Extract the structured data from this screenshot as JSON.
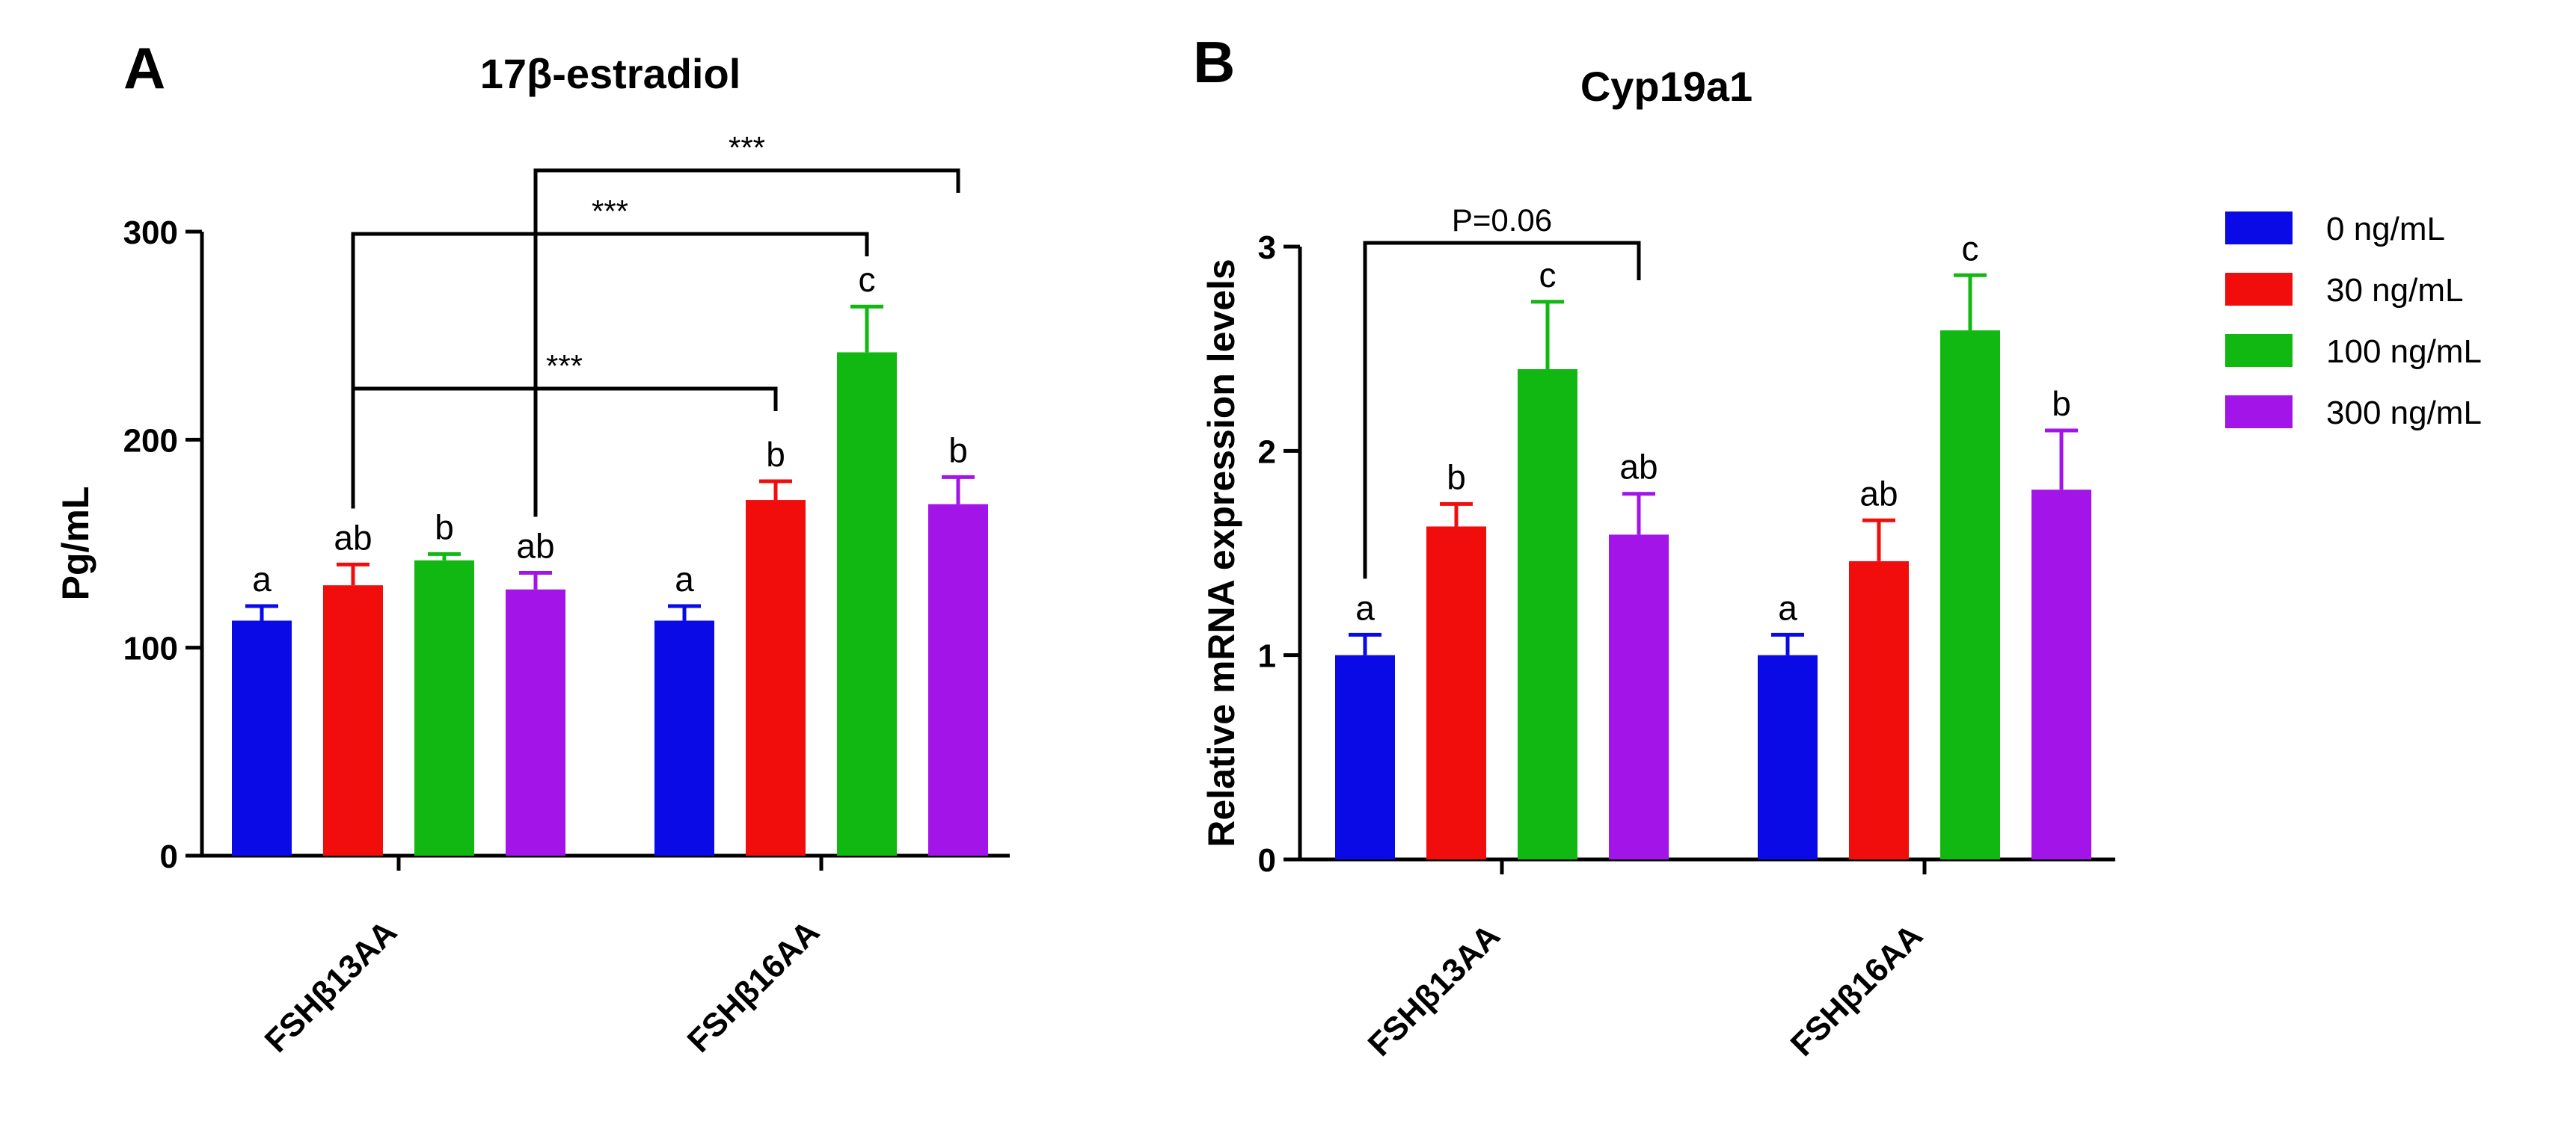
{
  "legend": {
    "entries": [
      {
        "label": "0 ng/mL",
        "color": "#0a0ae6"
      },
      {
        "label": "30 ng/mL",
        "color": "#f20d0d"
      },
      {
        "label": "100 ng/mL",
        "color": "#12b812"
      },
      {
        "label": "300 ng/mL",
        "color": "#a314e8"
      }
    ]
  },
  "chart_data": [
    {
      "panel": "A",
      "type": "bar",
      "title": "17β-estradiol",
      "xlabel": "",
      "ylabel": "Pg/mL",
      "ylim": [
        0,
        300
      ],
      "yticks": [
        0,
        100,
        200,
        300
      ],
      "categories": [
        "FSHβ13AA",
        "FSHβ16AA"
      ],
      "series": [
        {
          "name": "0 ng/mL",
          "values": [
            113,
            113
          ],
          "errors": [
            7,
            7
          ],
          "letters": [
            "a",
            "a"
          ]
        },
        {
          "name": "30 ng/mL",
          "values": [
            130,
            171
          ],
          "errors": [
            10,
            9
          ],
          "letters": [
            "ab",
            "b"
          ]
        },
        {
          "name": "100 ng/mL",
          "values": [
            142,
            242
          ],
          "errors": [
            3,
            22
          ],
          "letters": [
            "b",
            "c"
          ]
        },
        {
          "name": "300 ng/mL",
          "values": [
            128,
            169
          ],
          "errors": [
            8,
            13
          ],
          "letters": [
            "ab",
            "b"
          ]
        }
      ],
      "comparisons": [
        {
          "from": [
            0,
            1
          ],
          "to": [
            1,
            1
          ],
          "label": "***"
        },
        {
          "from": [
            0,
            1
          ],
          "to": [
            1,
            2
          ],
          "label": "***"
        },
        {
          "from": [
            0,
            3
          ],
          "to": [
            1,
            3
          ],
          "label": "***"
        }
      ]
    },
    {
      "panel": "B",
      "type": "bar",
      "title": "Cyp19a1",
      "xlabel": "",
      "ylabel": "Relative mRNA expression levels",
      "ylim": [
        0,
        3
      ],
      "yticks": [
        0,
        1,
        2,
        3
      ],
      "categories": [
        "FSHβ13AA",
        "FSHβ16AA"
      ],
      "series": [
        {
          "name": "0 ng/mL",
          "values": [
            1.0,
            1.0
          ],
          "errors": [
            0.1,
            0.1
          ],
          "letters": [
            "a",
            "a"
          ]
        },
        {
          "name": "30 ng/mL",
          "values": [
            1.63,
            1.46
          ],
          "errors": [
            0.11,
            0.2
          ],
          "letters": [
            "b",
            "ab"
          ]
        },
        {
          "name": "100 ng/mL",
          "values": [
            2.4,
            2.59
          ],
          "errors": [
            0.33,
            0.27
          ],
          "letters": [
            "c",
            "c"
          ]
        },
        {
          "name": "300 ng/mL",
          "values": [
            1.59,
            1.81
          ],
          "errors": [
            0.2,
            0.29
          ],
          "letters": [
            "ab",
            "b"
          ]
        }
      ],
      "comparisons": [
        {
          "from": [
            0,
            0
          ],
          "to": [
            0,
            3
          ],
          "label": "P=0.06"
        }
      ]
    }
  ]
}
